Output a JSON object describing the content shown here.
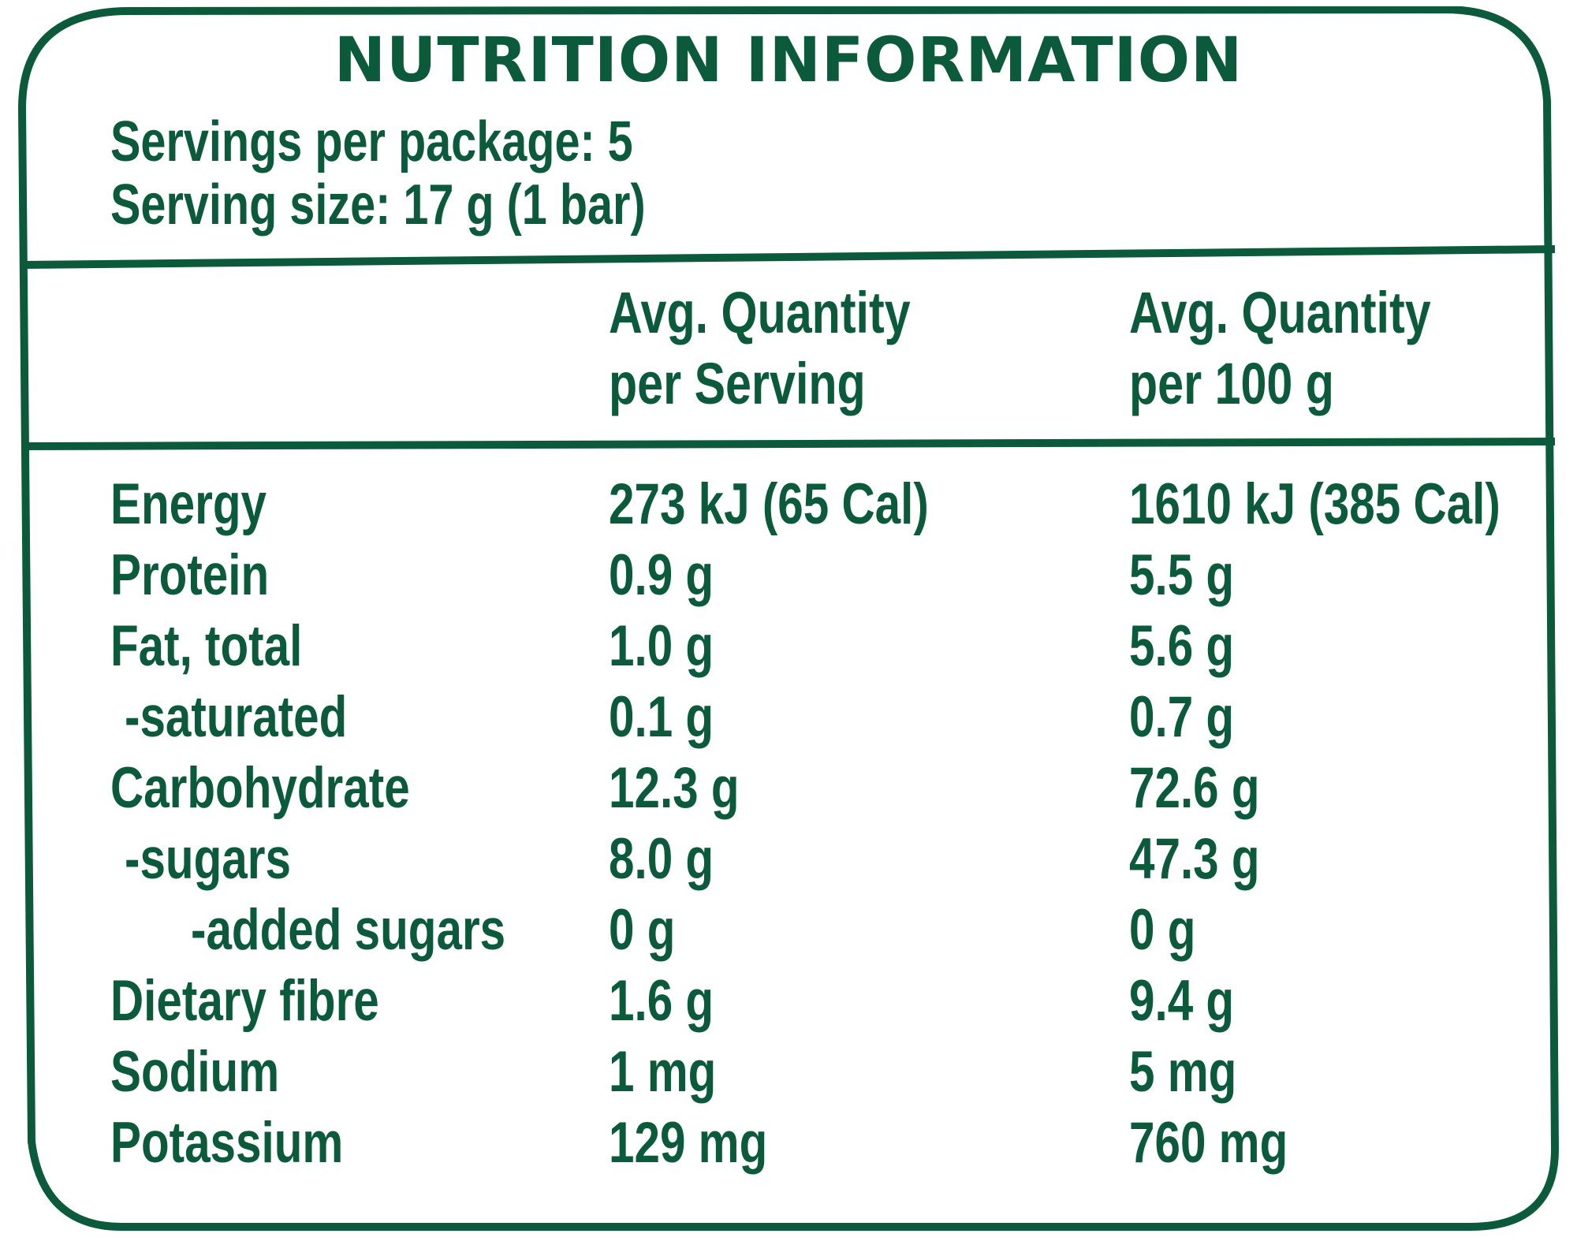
{
  "title": "NUTRITION INFORMATION",
  "servings_per_package": "Servings per package: 5",
  "serving_size": "Serving size: 17 g (1 bar)",
  "columns": [
    {
      "line1": "Avg. Quantity",
      "line2": "per Serving"
    },
    {
      "line1": "Avg. Quantity",
      "line2": "per 100 g"
    }
  ],
  "rows": [
    {
      "name": "Energy",
      "per_serving": "273 kJ (65 Cal)",
      "per_100g": "1610 kJ (385 Cal)"
    },
    {
      "name": "Protein",
      "per_serving": "0.9 g",
      "per_100g": "5.5 g"
    },
    {
      "name": "Fat, total",
      "per_serving": "1.0 g",
      "per_100g": "5.6 g"
    },
    {
      "name": "-saturated",
      "per_serving": "0.1 g",
      "per_100g": "0.7 g"
    },
    {
      "name": "Carbohydrate",
      "per_serving": "12.3 g",
      "per_100g": "72.6 g"
    },
    {
      "name": "-sugars",
      "per_serving": "8.0 g",
      "per_100g": "47.3 g"
    },
    {
      "name": "-added sugars",
      "per_serving": "0 g",
      "per_100g": "0 g"
    },
    {
      "name": "Dietary fibre",
      "per_serving": "1.6 g",
      "per_100g": "9.4 g"
    },
    {
      "name": "Sodium",
      "per_serving": "1 mg",
      "per_100g": "5 mg"
    },
    {
      "name": "Potassium",
      "per_serving": "129 mg",
      "per_100g": "760 mg"
    }
  ],
  "colors": {
    "ink": "#0b5a3b",
    "background": "#ffffff"
  }
}
